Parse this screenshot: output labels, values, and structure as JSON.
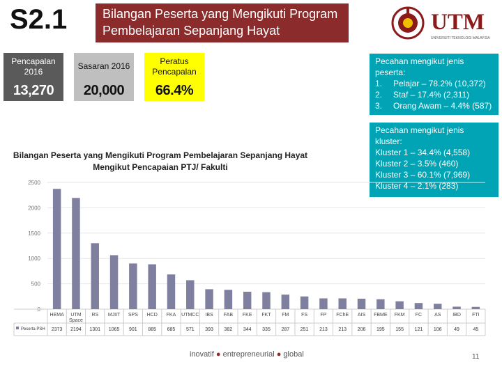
{
  "slide": {
    "number": "S2.1",
    "title_line1": "Bilangan Peserta yang Mengikuti Program",
    "title_line2": "Pembelajaran Sepanjang Hayat"
  },
  "logo": {
    "text": "UTM",
    "subtitle": "UNIVERSITI TEKNOLOGI MALAYSIA"
  },
  "kpi": {
    "achievement_label": "Pencapalan 2016",
    "target_label": "Sasaran 2016",
    "percent_label": "Peratus Pencapalan",
    "achievement_value": "13,270",
    "target_value": "20,000",
    "percent_value": "66.4%"
  },
  "breakdown_participants": {
    "heading_line1": "Pecahan mengikut jenis",
    "heading_line2": "peserta:",
    "items": [
      {
        "n": "1.",
        "text": "Pelajar – 78.2% (10,372)"
      },
      {
        "n": "2.",
        "text": "Staf – 17.4% (2,311)"
      },
      {
        "n": "3.",
        "text": "Orang Awam – 4.4% (587)"
      }
    ]
  },
  "breakdown_cluster": {
    "heading_line1": "Pecahan mengikut jenis",
    "heading_line2": "kluster:",
    "items": [
      "Kluster 1 – 34.4% (4,558)",
      "Kluster 2 – 3.5% (460)",
      "Kluster 3 – 60.1% (7,969)",
      "Kluster 4 – 2.1% (283)"
    ]
  },
  "chart_title_line1": "Bilangan Peserta yang Mengikuti Program Pembelajaran Sepanjang Hayat",
  "chart_title_line2": "Mengikut Pencapaian PTJ/ Fakulti",
  "chart_data": {
    "type": "bar",
    "title": "Bilangan Peserta yang Mengikuti Program Pembelajaran Sepanjang Hayat Mengikut Pencapaian PTJ/ Fakulti",
    "categories": [
      "HEMA",
      "UTM Space",
      "RS",
      "MJIIT",
      "SPS",
      "HCD",
      "FKA",
      "UTMCC",
      "IBS",
      "FAB",
      "FKE",
      "FKT",
      "FM",
      "FS",
      "FP",
      "FChE",
      "AIS",
      "FBME",
      "FKM",
      "FC",
      "AS",
      "IBD",
      "FTI"
    ],
    "series": [
      {
        "name": "Peserta PSH",
        "values": [
          2373,
          2194,
          1301,
          1065,
          901,
          885,
          685,
          571,
          393,
          382,
          344,
          335,
          287,
          251,
          213,
          213,
          206,
          195,
          155,
          121,
          106,
          49,
          45
        ]
      }
    ],
    "ylim": [
      0,
      2500
    ],
    "yticks": [
      0,
      500,
      1000,
      1500,
      2000,
      2500
    ],
    "bar_color": "#7f7f9f",
    "legend_label": "Peserta PSH"
  },
  "footer": {
    "w1": "inovatif",
    "w2": "entrepreneurial",
    "w3": "global",
    "page": "11"
  }
}
